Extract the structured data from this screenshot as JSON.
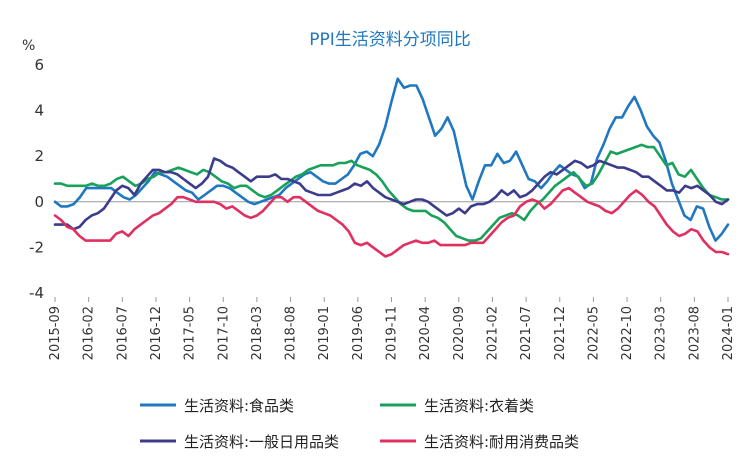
{
  "chart_data": {
    "type": "line",
    "title": "PPI生活资料分项同比",
    "y_unit": "%",
    "ylim": [
      -4,
      6
    ],
    "y_ticks": [
      -4,
      -2,
      0,
      2,
      4,
      6
    ],
    "x_tick_labels": [
      "2015-09",
      "2016-02",
      "2016-07",
      "2016-12",
      "2017-05",
      "2017-10",
      "2018-03",
      "2018-08",
      "2019-01",
      "2019-06",
      "2019-11",
      "2020-04",
      "2020-09",
      "2021-02",
      "2021-07",
      "2021-12",
      "2022-05",
      "2022-10",
      "2023-03",
      "2023-08",
      "2024-01"
    ],
    "x_start": "2015-09",
    "x_end": "2024-01",
    "grid": false,
    "legend_position": "bottom",
    "series": [
      {
        "name": "生活资料:食品类",
        "color": "#1f78c1",
        "values": [
          0.0,
          -0.2,
          -0.2,
          -0.1,
          0.2,
          0.6,
          0.6,
          0.6,
          0.6,
          0.6,
          0.4,
          0.2,
          0.1,
          0.3,
          0.6,
          0.9,
          1.3,
          1.2,
          1.1,
          0.9,
          0.7,
          0.5,
          0.4,
          0.1,
          0.3,
          0.5,
          0.7,
          0.7,
          0.6,
          0.4,
          0.2,
          0.0,
          -0.1,
          0.0,
          0.1,
          0.2,
          0.3,
          0.6,
          0.8,
          1.0,
          1.2,
          1.3,
          1.1,
          0.9,
          0.8,
          0.8,
          1.0,
          1.2,
          1.6,
          2.1,
          2.2,
          2.0,
          2.5,
          3.3,
          4.4,
          5.4,
          5.0,
          5.1,
          5.1,
          4.5,
          3.7,
          2.9,
          3.2,
          3.7,
          3.1,
          1.9,
          0.7,
          0.1,
          0.9,
          1.6,
          1.6,
          2.1,
          1.7,
          1.8,
          2.2,
          1.6,
          1.0,
          0.9,
          0.6,
          0.9,
          1.3,
          1.6,
          1.4,
          1.2,
          1.1,
          0.6,
          0.8,
          1.9,
          2.5,
          3.2,
          3.7,
          3.7,
          4.2,
          4.6,
          4.0,
          3.3,
          2.9,
          2.6,
          1.8,
          0.8,
          0.1,
          -0.6,
          -0.8,
          -0.2,
          -0.3,
          -1.1,
          -1.7,
          -1.4,
          -1.0
        ]
      },
      {
        "name": "生活资料:衣着类",
        "color": "#19a15a",
        "values": [
          0.8,
          0.8,
          0.7,
          0.7,
          0.7,
          0.7,
          0.8,
          0.7,
          0.7,
          0.8,
          1.0,
          1.1,
          0.9,
          0.7,
          0.8,
          1.0,
          1.1,
          1.3,
          1.3,
          1.4,
          1.5,
          1.4,
          1.3,
          1.2,
          1.4,
          1.3,
          1.1,
          0.9,
          0.8,
          0.6,
          0.7,
          0.7,
          0.5,
          0.3,
          0.2,
          0.3,
          0.5,
          0.7,
          0.9,
          1.1,
          1.2,
          1.4,
          1.5,
          1.6,
          1.6,
          1.6,
          1.7,
          1.7,
          1.8,
          1.6,
          1.5,
          1.4,
          1.2,
          0.9,
          0.5,
          0.2,
          -0.1,
          -0.3,
          -0.4,
          -0.4,
          -0.4,
          -0.6,
          -0.7,
          -0.9,
          -1.2,
          -1.5,
          -1.6,
          -1.7,
          -1.7,
          -1.6,
          -1.3,
          -1.0,
          -0.7,
          -0.6,
          -0.5,
          -0.6,
          -0.8,
          -0.4,
          -0.1,
          0.1,
          0.4,
          0.7,
          0.9,
          1.1,
          1.3,
          1.0,
          0.7,
          0.8,
          1.2,
          1.7,
          2.2,
          2.1,
          2.2,
          2.3,
          2.4,
          2.5,
          2.4,
          2.4,
          2.0,
          1.6,
          1.7,
          1.2,
          1.1,
          1.4,
          1.0,
          0.6,
          0.3,
          0.2,
          0.1,
          0.1
        ]
      },
      {
        "name": "生活资料:一般日用品类",
        "color": "#3c3c8c",
        "values": [
          -1.0,
          -1.0,
          -1.0,
          -1.2,
          -1.1,
          -0.8,
          -0.6,
          -0.5,
          -0.3,
          0.1,
          0.5,
          0.7,
          0.6,
          0.3,
          0.8,
          1.1,
          1.4,
          1.4,
          1.3,
          1.3,
          1.2,
          1.0,
          0.8,
          0.6,
          0.8,
          1.1,
          1.9,
          1.8,
          1.6,
          1.5,
          1.3,
          1.1,
          0.9,
          1.1,
          1.1,
          1.1,
          1.2,
          1.0,
          1.0,
          0.9,
          0.8,
          0.5,
          0.4,
          0.3,
          0.3,
          0.3,
          0.4,
          0.5,
          0.6,
          0.8,
          0.7,
          0.9,
          0.6,
          0.4,
          0.2,
          0.1,
          0.0,
          -0.1,
          0.0,
          0.1,
          0.1,
          0.0,
          -0.2,
          -0.4,
          -0.6,
          -0.5,
          -0.3,
          -0.5,
          -0.2,
          -0.1,
          -0.1,
          0.0,
          0.2,
          0.5,
          0.3,
          0.5,
          0.2,
          0.3,
          0.5,
          0.8,
          1.1,
          1.3,
          1.2,
          1.4,
          1.6,
          1.8,
          1.7,
          1.5,
          1.6,
          1.8,
          1.7,
          1.6,
          1.5,
          1.5,
          1.4,
          1.3,
          1.1,
          1.1,
          0.9,
          0.7,
          0.5,
          0.5,
          0.4,
          0.7,
          0.6,
          0.7,
          0.5,
          0.3,
          0.0,
          -0.1,
          0.1
        ]
      },
      {
        "name": "生活资料:耐用消费品类",
        "color": "#e03060",
        "values": [
          -0.6,
          -0.8,
          -1.1,
          -1.2,
          -1.5,
          -1.7,
          -1.7,
          -1.7,
          -1.7,
          -1.7,
          -1.4,
          -1.3,
          -1.5,
          -1.2,
          -1.0,
          -0.8,
          -0.6,
          -0.5,
          -0.3,
          -0.1,
          0.2,
          0.2,
          0.1,
          0.0,
          0.0,
          0.0,
          0.0,
          -0.1,
          -0.3,
          -0.2,
          -0.4,
          -0.6,
          -0.7,
          -0.6,
          -0.4,
          -0.1,
          0.2,
          0.2,
          0.0,
          0.2,
          0.2,
          0.0,
          -0.2,
          -0.4,
          -0.5,
          -0.6,
          -0.8,
          -1.0,
          -1.3,
          -1.8,
          -1.9,
          -1.8,
          -2.0,
          -2.2,
          -2.4,
          -2.3,
          -2.1,
          -1.9,
          -1.8,
          -1.7,
          -1.8,
          -1.8,
          -1.7,
          -1.9,
          -1.9,
          -1.9,
          -1.9,
          -1.9,
          -1.8,
          -1.8,
          -1.8,
          -1.5,
          -1.2,
          -0.9,
          -0.7,
          -0.6,
          -0.2,
          0.0,
          0.1,
          0.0,
          -0.3,
          -0.1,
          0.2,
          0.5,
          0.6,
          0.4,
          0.2,
          0.0,
          -0.1,
          -0.2,
          -0.4,
          -0.5,
          -0.3,
          0.0,
          0.3,
          0.5,
          0.3,
          0.0,
          -0.2,
          -0.6,
          -1.0,
          -1.3,
          -1.5,
          -1.4,
          -1.2,
          -1.3,
          -1.7,
          -2.0,
          -2.2,
          -2.2,
          -2.3
        ]
      }
    ]
  }
}
